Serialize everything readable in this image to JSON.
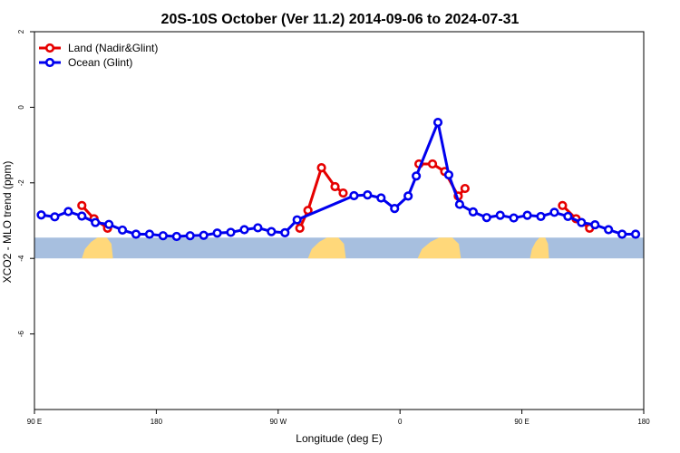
{
  "chart_data": {
    "type": "line",
    "title": "20S-10S October (Ver 11.2)   2014-09-06 to 2024-07-31",
    "xlabel": "Longitude (deg E)",
    "ylabel": "XCO2 - MLO trend (ppm)",
    "xlim": [
      90,
      540
    ],
    "ylim": [
      -8,
      2
    ],
    "x_ticks": [
      {
        "value": 90,
        "label": "90 E"
      },
      {
        "value": 180,
        "label": "180"
      },
      {
        "value": 270,
        "label": "90 W"
      },
      {
        "value": 360,
        "label": "0"
      },
      {
        "value": 450,
        "label": "90 E"
      },
      {
        "value": 540,
        "label": "180"
      }
    ],
    "y_ticks": [
      {
        "value": 2,
        "label": "2"
      },
      {
        "value": 0,
        "label": "0"
      },
      {
        "value": -2,
        "label": "-2"
      },
      {
        "value": -4,
        "label": "-4"
      },
      {
        "value": -6,
        "label": "-6"
      }
    ],
    "grid": false,
    "legend_position": "top-left",
    "map_band": {
      "ymin": -4,
      "ymax": -3.45,
      "ocean_color": "#a7bfdf",
      "land_color": "#ffd87a",
      "land_spans": [
        [
          125,
          148
        ],
        [
          292,
          320
        ],
        [
          373,
          405
        ],
        [
          456,
          470
        ]
      ]
    },
    "series": [
      {
        "name": "Land (Nadir&Glint)",
        "color": "#e60000",
        "segments": [
          [
            [
              125,
              -2.6
            ],
            [
              134,
              -2.95
            ],
            [
              144,
              -3.2
            ]
          ],
          [
            [
              286,
              -3.2
            ],
            [
              292,
              -2.73
            ],
            [
              302,
              -1.6
            ],
            [
              312,
              -2.1
            ],
            [
              318,
              -2.27
            ]
          ],
          [
            [
              374,
              -1.5
            ],
            [
              384,
              -1.5
            ],
            [
              393,
              -1.7
            ],
            [
              403,
              -2.35
            ],
            [
              408,
              -2.15
            ]
          ],
          [
            [
              480,
              -2.6
            ],
            [
              490,
              -2.95
            ],
            [
              500,
              -3.2
            ]
          ]
        ]
      },
      {
        "name": "Ocean (Glint)",
        "color": "#0000ee",
        "segments": [
          [
            [
              95,
              -2.85
            ],
            [
              105,
              -2.9
            ],
            [
              115,
              -2.76
            ],
            [
              125,
              -2.88
            ],
            [
              135,
              -3.05
            ],
            [
              145,
              -3.1
            ],
            [
              155,
              -3.25
            ],
            [
              165,
              -3.36
            ],
            [
              175,
              -3.36
            ],
            [
              185,
              -3.4
            ],
            [
              195,
              -3.42
            ],
            [
              205,
              -3.4
            ],
            [
              215,
              -3.39
            ],
            [
              225,
              -3.33
            ],
            [
              235,
              -3.31
            ],
            [
              245,
              -3.24
            ],
            [
              255,
              -3.19
            ],
            [
              265,
              -3.29
            ],
            [
              275,
              -3.32
            ],
            [
              284,
              -2.98
            ],
            [
              326,
              -2.34
            ],
            [
              336,
              -2.32
            ],
            [
              346,
              -2.4
            ],
            [
              356,
              -2.68
            ],
            [
              366,
              -2.35
            ],
            [
              372,
              -1.82
            ],
            [
              388,
              -0.4
            ],
            [
              396,
              -1.79
            ],
            [
              404,
              -2.57
            ],
            [
              414,
              -2.77
            ],
            [
              424,
              -2.92
            ],
            [
              434,
              -2.86
            ],
            [
              444,
              -2.93
            ],
            [
              454,
              -2.86
            ],
            [
              464,
              -2.89
            ],
            [
              474,
              -2.78
            ],
            [
              484,
              -2.89
            ],
            [
              494,
              -3.05
            ],
            [
              504,
              -3.11
            ],
            [
              514,
              -3.24
            ],
            [
              524,
              -3.36
            ],
            [
              534,
              -3.36
            ]
          ]
        ]
      }
    ]
  }
}
